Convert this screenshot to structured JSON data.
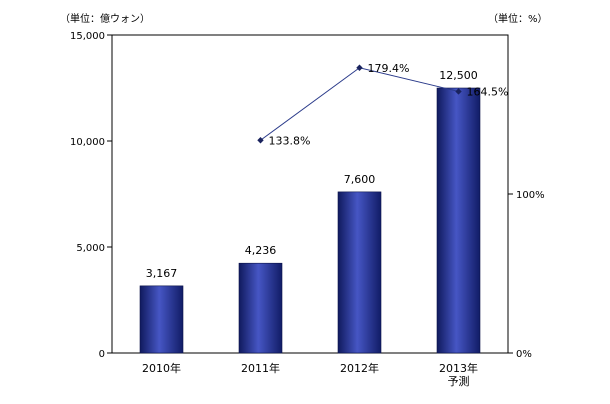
{
  "chart_data": {
    "type": "bar",
    "categories": [
      [
        "2010年"
      ],
      [
        "2011年"
      ],
      [
        "2012年"
      ],
      [
        "2013年",
        "予測"
      ]
    ],
    "series": [
      {
        "type": "bar",
        "axis": "left",
        "values": [
          3167,
          4236,
          7600,
          12500
        ],
        "value_labels": [
          "3,167",
          "4,236",
          "7,600",
          "12,500"
        ],
        "color": "#2c3a9a"
      },
      {
        "type": "line",
        "axis": "right",
        "values": [
          null,
          133.8,
          179.4,
          164.5
        ],
        "value_labels": [
          null,
          "133.8%",
          "179.4%",
          "164.5%"
        ],
        "color": "#2a3a8a"
      }
    ],
    "left_axis": {
      "unit_label": "（単位：億ウォン）",
      "ylim": [
        0,
        15000
      ],
      "ticks": [
        0,
        5000,
        10000,
        15000
      ],
      "tick_labels": [
        "0",
        "5,000",
        "10,000",
        "15,000"
      ]
    },
    "right_axis": {
      "unit_label": "（単位：%）",
      "ylim": [
        0,
        200
      ],
      "ticks": [
        0,
        100
      ],
      "tick_labels": [
        "0%",
        "100%"
      ]
    },
    "grid": false,
    "legend": "none"
  }
}
